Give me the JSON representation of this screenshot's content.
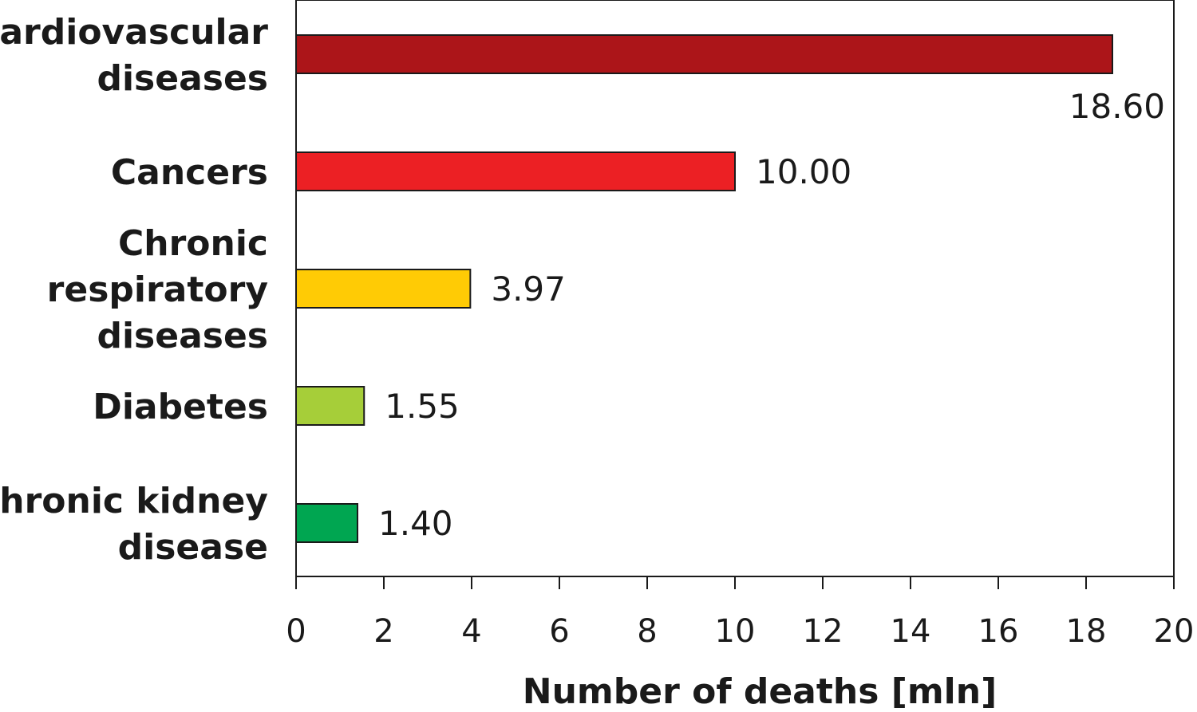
{
  "chart_data": {
    "type": "bar",
    "orientation": "horizontal",
    "categories": [
      [
        "Cardiovascular",
        "diseases"
      ],
      [
        "Cancers"
      ],
      [
        "Chronic",
        "respiratory",
        "diseases"
      ],
      [
        "Diabetes"
      ],
      [
        "Chronic kidney",
        "disease"
      ]
    ],
    "values": [
      18.6,
      10.0,
      3.97,
      1.55,
      1.4
    ],
    "value_labels": [
      "18.60",
      "10.00",
      "3.97",
      "1.55",
      "1.40"
    ],
    "colors": [
      "#ac1519",
      "#ec2024",
      "#ffcb05",
      "#a6ce39",
      "#00a651"
    ],
    "xlabel": "Number of deaths [mln]",
    "ylabel": "",
    "xlim": [
      0,
      20
    ],
    "xticks": [
      0,
      2,
      4,
      6,
      8,
      10,
      12,
      14,
      16,
      18,
      20
    ],
    "grid": false,
    "legend": "none"
  }
}
